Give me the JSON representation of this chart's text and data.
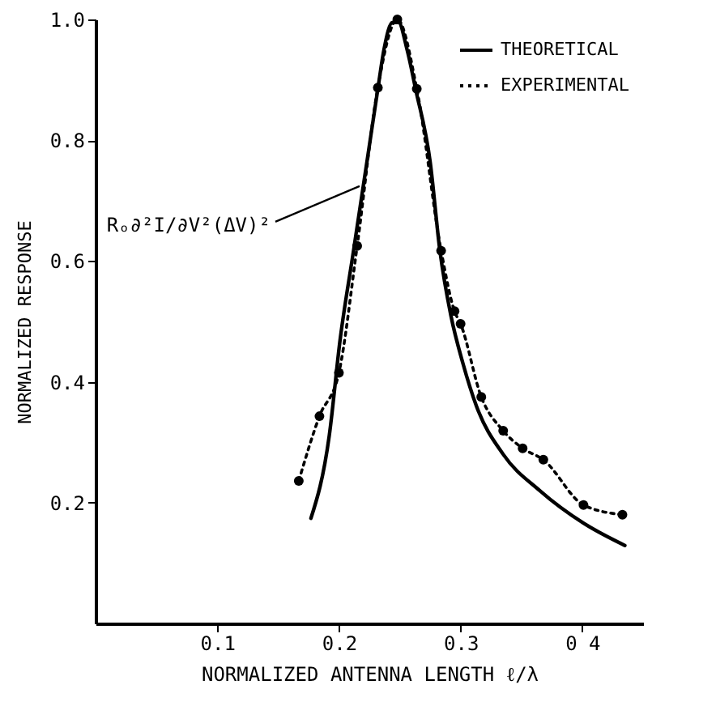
{
  "chart_data": {
    "type": "line",
    "xlabel": "NORMALIZED ANTENNA LENGTH ℓ/λ",
    "ylabel": "NORMALIZED RESPONSE",
    "xlim": [
      0,
      0.45
    ],
    "ylim": [
      0,
      1.0
    ],
    "xticks": [
      0.1,
      0.2,
      0.3,
      {
        "value": 0.4,
        "label": "0 4"
      }
    ],
    "yticks": [
      0.2,
      0.4,
      0.6,
      0.8,
      {
        "value": 1.0,
        "label": "1.0"
      }
    ],
    "grid": false,
    "legend": "top right",
    "annotations": [
      {
        "text": "Rₒ∂²I/∂V²(ΔV)²",
        "x": 0.217,
        "y": 0.724
      }
    ],
    "series": [
      {
        "name": "THEORETICAL",
        "color": "#000000",
        "line_style": "solid",
        "marker": "none",
        "x": [
          0.177,
          0.192,
          0.201,
          0.212,
          0.223,
          0.232,
          0.237,
          0.244,
          0.249,
          0.256,
          0.263,
          0.275,
          0.283,
          0.292,
          0.302,
          0.313,
          0.335,
          0.365,
          0.401,
          0.435
        ],
        "values": [
          0.174,
          0.31,
          0.47,
          0.617,
          0.764,
          0.885,
          0.95,
          0.995,
          0.995,
          0.95,
          0.885,
          0.764,
          0.617,
          0.51,
          0.43,
          0.36,
          0.28,
          0.22,
          0.166,
          0.129
        ]
      },
      {
        "name": "EXPERIMENTAL",
        "color": "#000000",
        "line_style": "dotted",
        "marker": "circle",
        "x": [
          0.167,
          0.184,
          0.2,
          0.215,
          0.232,
          0.248,
          0.264,
          0.284,
          0.295,
          0.3,
          0.317,
          0.335,
          0.351,
          0.368,
          0.401,
          0.433
        ],
        "values": [
          0.236,
          0.343,
          0.415,
          0.625,
          0.887,
          1.0,
          0.885,
          0.617,
          0.517,
          0.496,
          0.375,
          0.319,
          0.29,
          0.271,
          0.196,
          0.18
        ]
      }
    ]
  }
}
